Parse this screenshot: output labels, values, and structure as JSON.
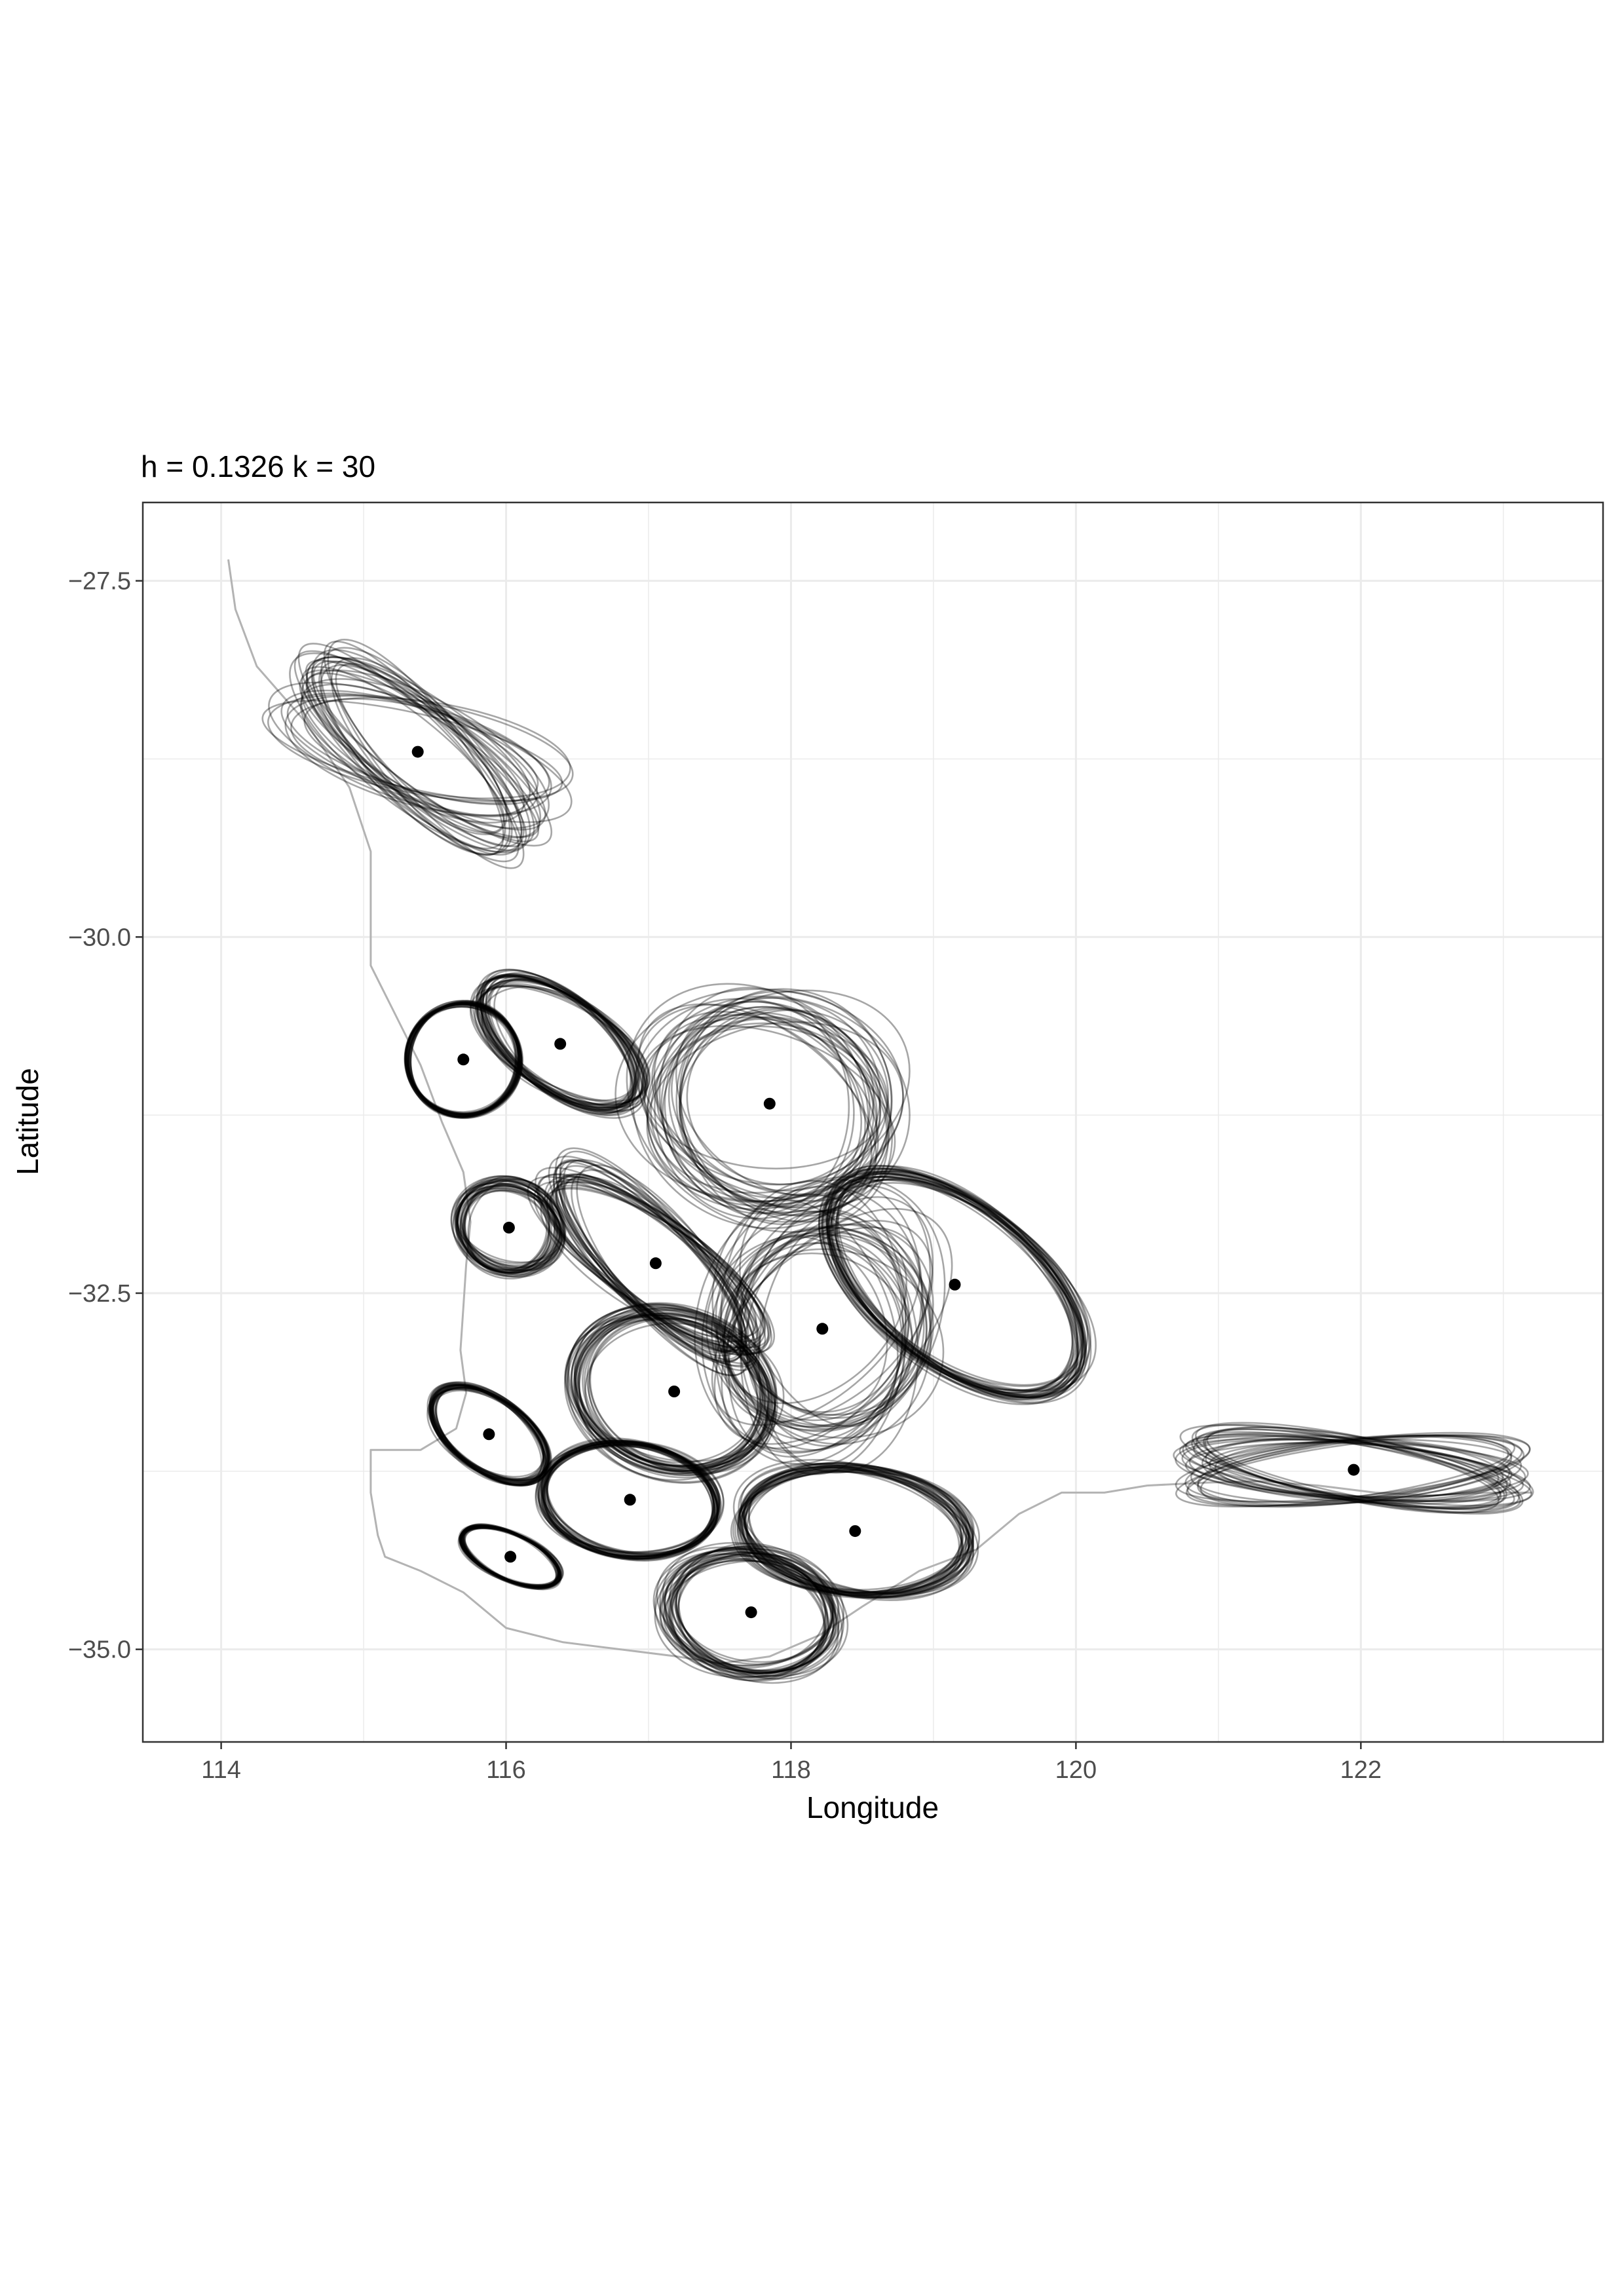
{
  "chart_data": {
    "type": "scatter",
    "title": "h = 0.1326 k = 30",
    "xlabel": "Longitude",
    "ylabel": "Latitude",
    "xlim": [
      113.45,
      123.7
    ],
    "ylim": [
      -35.65,
      -26.95
    ],
    "x_ticks": [
      114,
      116,
      118,
      120,
      122
    ],
    "x_tick_labels": [
      "114",
      "116",
      "118",
      "120",
      "122"
    ],
    "y_ticks": [
      -27.5,
      -30.0,
      -32.5,
      -35.0
    ],
    "y_tick_labels": [
      "−27.5",
      "−30.0",
      "−32.5",
      "−35.0"
    ],
    "grid": true,
    "legend": "none",
    "colors": {
      "points": "#000000",
      "ellipses": "#000000",
      "coastline": "#b3b3b3",
      "grid": "#ebebeb",
      "panel_border": "#333333"
    },
    "points": [
      {
        "x": 115.38,
        "y": -28.7
      },
      {
        "x": 115.7,
        "y": -30.86
      },
      {
        "x": 116.38,
        "y": -30.75
      },
      {
        "x": 117.85,
        "y": -31.17
      },
      {
        "x": 116.02,
        "y": -32.04
      },
      {
        "x": 117.05,
        "y": -32.29
      },
      {
        "x": 119.15,
        "y": -32.44
      },
      {
        "x": 118.22,
        "y": -32.75
      },
      {
        "x": 117.18,
        "y": -33.19
      },
      {
        "x": 115.88,
        "y": -33.49
      },
      {
        "x": 116.87,
        "y": -33.95
      },
      {
        "x": 118.45,
        "y": -34.17
      },
      {
        "x": 116.03,
        "y": -34.35
      },
      {
        "x": 117.72,
        "y": -34.74
      },
      {
        "x": 121.95,
        "y": -33.74
      }
    ],
    "ellipses_per_point": 30,
    "coastline": [
      [
        114.05,
        -27.35
      ],
      [
        114.1,
        -27.7
      ],
      [
        114.25,
        -28.1
      ],
      [
        114.6,
        -28.5
      ],
      [
        114.9,
        -28.95
      ],
      [
        115.05,
        -29.4
      ],
      [
        115.05,
        -29.8
      ],
      [
        115.05,
        -30.2
      ],
      [
        115.2,
        -30.5
      ],
      [
        115.4,
        -30.9
      ],
      [
        115.55,
        -31.3
      ],
      [
        115.7,
        -31.65
      ],
      [
        115.75,
        -32.0
      ],
      [
        115.72,
        -32.3
      ],
      [
        115.7,
        -32.6
      ],
      [
        115.68,
        -32.9
      ],
      [
        115.72,
        -33.2
      ],
      [
        115.65,
        -33.45
      ],
      [
        115.4,
        -33.6
      ],
      [
        115.05,
        -33.6
      ],
      [
        115.05,
        -33.9
      ],
      [
        115.1,
        -34.2
      ],
      [
        115.15,
        -34.35
      ],
      [
        115.4,
        -34.45
      ],
      [
        115.7,
        -34.6
      ],
      [
        116.0,
        -34.85
      ],
      [
        116.4,
        -34.95
      ],
      [
        116.8,
        -35.0
      ],
      [
        117.2,
        -35.05
      ],
      [
        117.5,
        -35.1
      ],
      [
        117.85,
        -35.05
      ],
      [
        118.2,
        -34.9
      ],
      [
        118.5,
        -34.7
      ],
      [
        118.9,
        -34.45
      ],
      [
        119.3,
        -34.3
      ],
      [
        119.6,
        -34.05
      ],
      [
        119.9,
        -33.9
      ],
      [
        120.2,
        -33.9
      ],
      [
        120.5,
        -33.85
      ],
      [
        120.9,
        -33.83
      ],
      [
        121.3,
        -33.82
      ],
      [
        121.7,
        -33.85
      ],
      [
        122.1,
        -33.9
      ],
      [
        122.5,
        -33.92
      ],
      [
        122.9,
        -33.9
      ],
      [
        123.2,
        -33.9
      ]
    ]
  }
}
